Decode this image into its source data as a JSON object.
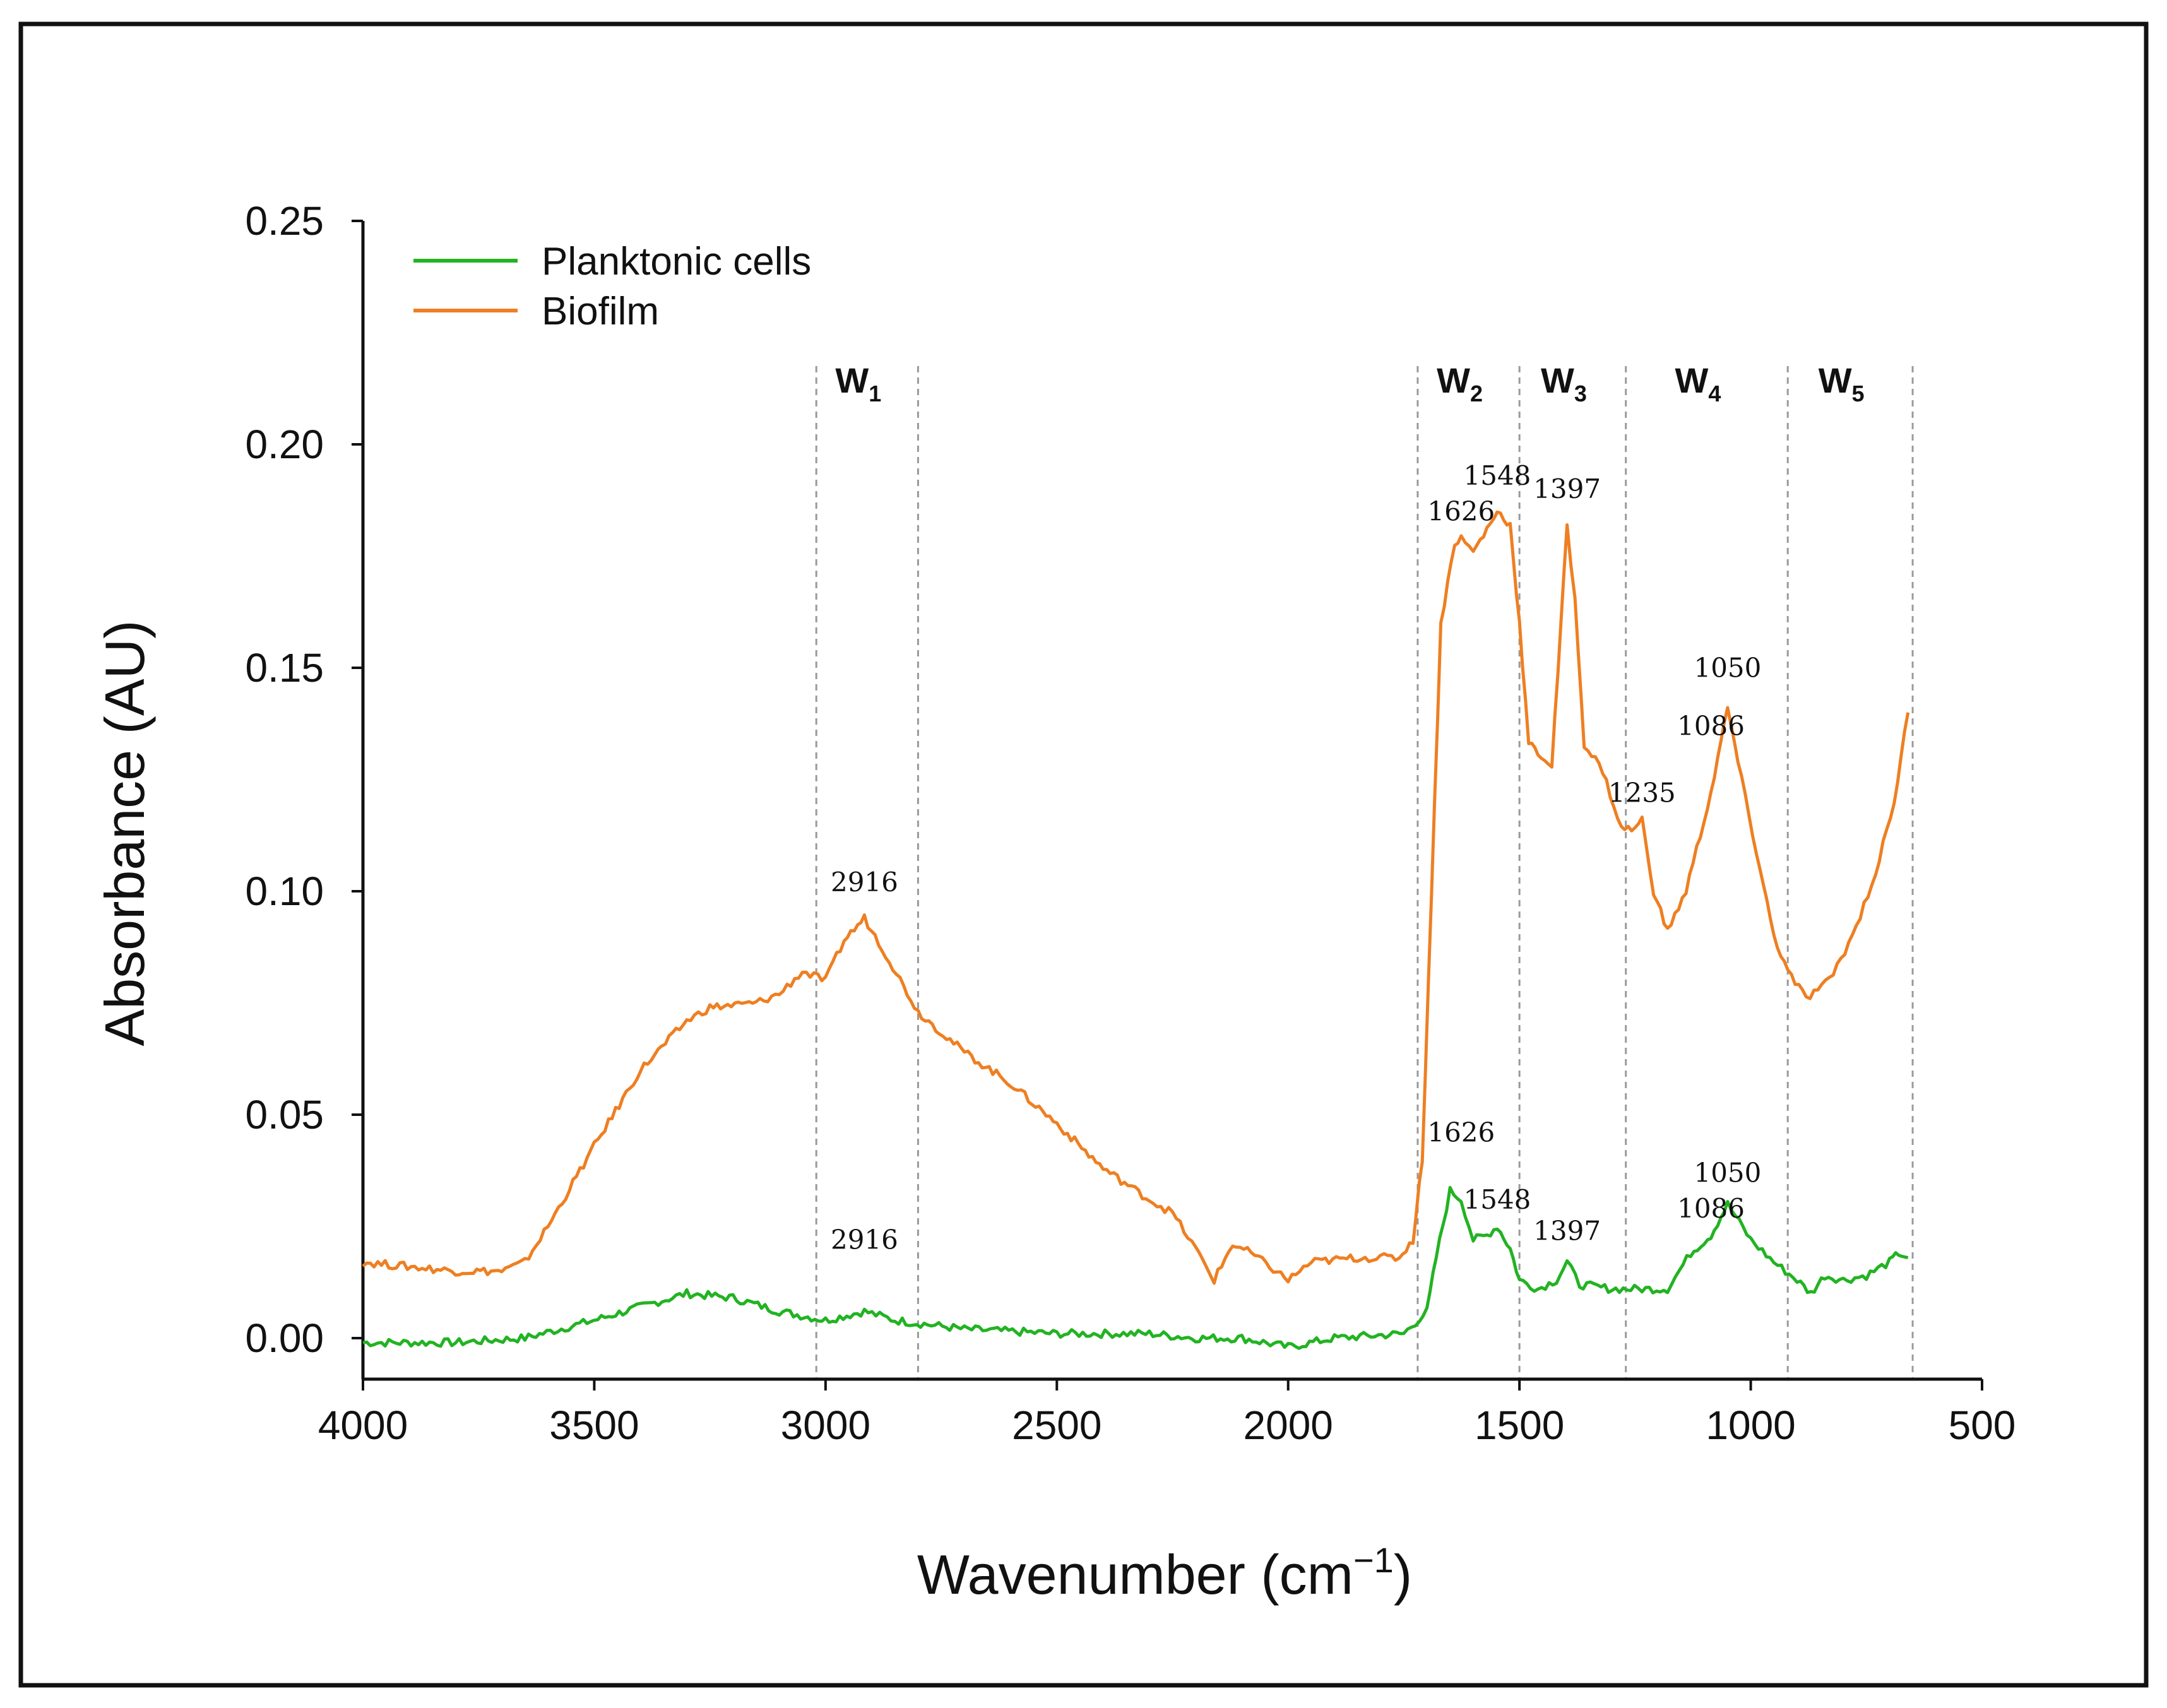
{
  "chart_data": {
    "type": "line",
    "xlabel_main": "Wavenumber (cm",
    "xlabel_sup": "−1",
    "xlabel_end": ")",
    "ylabel": "Absorbance (AU)",
    "xlim": [
      4000,
      500
    ],
    "ylim": [
      0,
      0.25
    ],
    "x_reversed": true,
    "x_ticks": [
      4000,
      3500,
      3000,
      2500,
      2000,
      1500,
      1000,
      500
    ],
    "x_tick_labels": [
      "4000",
      "3500",
      "3000",
      "2500",
      "2000",
      "1500",
      "1000",
      "500"
    ],
    "y_ticks": [
      0.0,
      0.05,
      0.1,
      0.15,
      0.2,
      0.25
    ],
    "y_tick_labels": [
      "0.00",
      "0.05",
      "0.10",
      "0.15",
      "0.20",
      "0.25"
    ],
    "legend_position": "top-left",
    "series": [
      {
        "name": "Planktonic cells",
        "color": "#22b322",
        "points": [
          [
            4000,
            -0.001
          ],
          [
            3800,
            -0.001
          ],
          [
            3650,
            0.0
          ],
          [
            3500,
            0.004
          ],
          [
            3400,
            0.007
          ],
          [
            3300,
            0.01
          ],
          [
            3200,
            0.009
          ],
          [
            3100,
            0.006
          ],
          [
            3000,
            0.004
          ],
          [
            2916,
            0.006
          ],
          [
            2850,
            0.004
          ],
          [
            2700,
            0.002
          ],
          [
            2500,
            0.001
          ],
          [
            2300,
            0.001
          ],
          [
            2200,
            0.0
          ],
          [
            2100,
            0.0
          ],
          [
            2000,
            -0.002
          ],
          [
            1900,
            0.0
          ],
          [
            1750,
            0.001
          ],
          [
            1700,
            0.006
          ],
          [
            1680,
            0.018
          ],
          [
            1650,
            0.033
          ],
          [
            1626,
            0.031
          ],
          [
            1600,
            0.022
          ],
          [
            1570,
            0.023
          ],
          [
            1548,
            0.025
          ],
          [
            1520,
            0.02
          ],
          [
            1500,
            0.013
          ],
          [
            1460,
            0.011
          ],
          [
            1420,
            0.013
          ],
          [
            1397,
            0.017
          ],
          [
            1370,
            0.012
          ],
          [
            1300,
            0.011
          ],
          [
            1235,
            0.011
          ],
          [
            1180,
            0.011
          ],
          [
            1130,
            0.019
          ],
          [
            1086,
            0.023
          ],
          [
            1050,
            0.03
          ],
          [
            1000,
            0.022
          ],
          [
            950,
            0.017
          ],
          [
            900,
            0.013
          ],
          [
            870,
            0.01
          ],
          [
            840,
            0.014
          ],
          [
            800,
            0.013
          ],
          [
            750,
            0.014
          ],
          [
            700,
            0.017
          ],
          [
            680,
            0.019
          ],
          [
            660,
            0.018
          ]
        ]
      },
      {
        "name": "Biofilm",
        "color": "#ee7f22",
        "points": [
          [
            4000,
            0.017
          ],
          [
            3800,
            0.015
          ],
          [
            3700,
            0.015
          ],
          [
            3650,
            0.017
          ],
          [
            3600,
            0.025
          ],
          [
            3500,
            0.043
          ],
          [
            3400,
            0.06
          ],
          [
            3300,
            0.071
          ],
          [
            3250,
            0.074
          ],
          [
            3150,
            0.075
          ],
          [
            3100,
            0.077
          ],
          [
            3050,
            0.082
          ],
          [
            3000,
            0.08
          ],
          [
            2960,
            0.089
          ],
          [
            2916,
            0.094
          ],
          [
            2870,
            0.086
          ],
          [
            2800,
            0.073
          ],
          [
            2700,
            0.064
          ],
          [
            2600,
            0.057
          ],
          [
            2500,
            0.048
          ],
          [
            2400,
            0.038
          ],
          [
            2300,
            0.031
          ],
          [
            2250,
            0.028
          ],
          [
            2200,
            0.02
          ],
          [
            2160,
            0.013
          ],
          [
            2120,
            0.021
          ],
          [
            2080,
            0.019
          ],
          [
            2040,
            0.016
          ],
          [
            2000,
            0.013
          ],
          [
            1950,
            0.017
          ],
          [
            1850,
            0.018
          ],
          [
            1760,
            0.018
          ],
          [
            1730,
            0.022
          ],
          [
            1710,
            0.04
          ],
          [
            1690,
            0.1
          ],
          [
            1670,
            0.16
          ],
          [
            1640,
            0.178
          ],
          [
            1626,
            0.179
          ],
          [
            1600,
            0.176
          ],
          [
            1570,
            0.181
          ],
          [
            1548,
            0.185
          ],
          [
            1520,
            0.182
          ],
          [
            1500,
            0.16
          ],
          [
            1480,
            0.133
          ],
          [
            1460,
            0.131
          ],
          [
            1430,
            0.128
          ],
          [
            1410,
            0.16
          ],
          [
            1397,
            0.182
          ],
          [
            1380,
            0.165
          ],
          [
            1360,
            0.133
          ],
          [
            1320,
            0.127
          ],
          [
            1280,
            0.114
          ],
          [
            1250,
            0.114
          ],
          [
            1235,
            0.116
          ],
          [
            1210,
            0.1
          ],
          [
            1180,
            0.091
          ],
          [
            1140,
            0.1
          ],
          [
            1086,
            0.122
          ],
          [
            1050,
            0.141
          ],
          [
            1020,
            0.125
          ],
          [
            980,
            0.105
          ],
          [
            950,
            0.09
          ],
          [
            920,
            0.082
          ],
          [
            880,
            0.076
          ],
          [
            830,
            0.08
          ],
          [
            780,
            0.09
          ],
          [
            730,
            0.104
          ],
          [
            690,
            0.12
          ],
          [
            660,
            0.14
          ]
        ]
      }
    ],
    "peak_labels": [
      {
        "series": "Biofilm",
        "text": "2916",
        "x": 2916,
        "y": 0.098
      },
      {
        "series": "Biofilm",
        "text": "1626",
        "x": 1626,
        "y": 0.181
      },
      {
        "series": "Biofilm",
        "text": "1548",
        "x": 1548,
        "y": 0.189
      },
      {
        "series": "Biofilm",
        "text": "1397",
        "x": 1397,
        "y": 0.186
      },
      {
        "series": "Biofilm",
        "text": "1050",
        "x": 1050,
        "y": 0.146
      },
      {
        "series": "Biofilm",
        "text": "1086",
        "x": 1086,
        "y": 0.133
      },
      {
        "series": "Biofilm",
        "text": "1235",
        "x": 1235,
        "y": 0.118
      },
      {
        "series": "Planktonic cells",
        "text": "2916",
        "x": 2916,
        "y": 0.018
      },
      {
        "series": "Planktonic cells",
        "text": "1626",
        "x": 1626,
        "y": 0.042
      },
      {
        "series": "Planktonic cells",
        "text": "1548",
        "x": 1548,
        "y": 0.027
      },
      {
        "series": "Planktonic cells",
        "text": "1397",
        "x": 1397,
        "y": 0.02
      },
      {
        "series": "Planktonic cells",
        "text": "1086",
        "x": 1086,
        "y": 0.025
      },
      {
        "series": "Planktonic cells",
        "text": "1050",
        "x": 1050,
        "y": 0.033
      }
    ],
    "regions": [
      {
        "label": "W",
        "sub": "1",
        "from": 3020,
        "to": 2800
      },
      {
        "label": "W",
        "sub": "2",
        "from": 1720,
        "to": 1500
      },
      {
        "label": "W",
        "sub": "3",
        "from": 1500,
        "to": 1270
      },
      {
        "label": "W",
        "sub": "4",
        "from": 1270,
        "to": 920
      },
      {
        "label": "W",
        "sub": "5",
        "from": 920,
        "to": 650
      }
    ],
    "region_boundaries": [
      3020,
      2800,
      1720,
      1500,
      1270,
      920,
      650
    ]
  }
}
